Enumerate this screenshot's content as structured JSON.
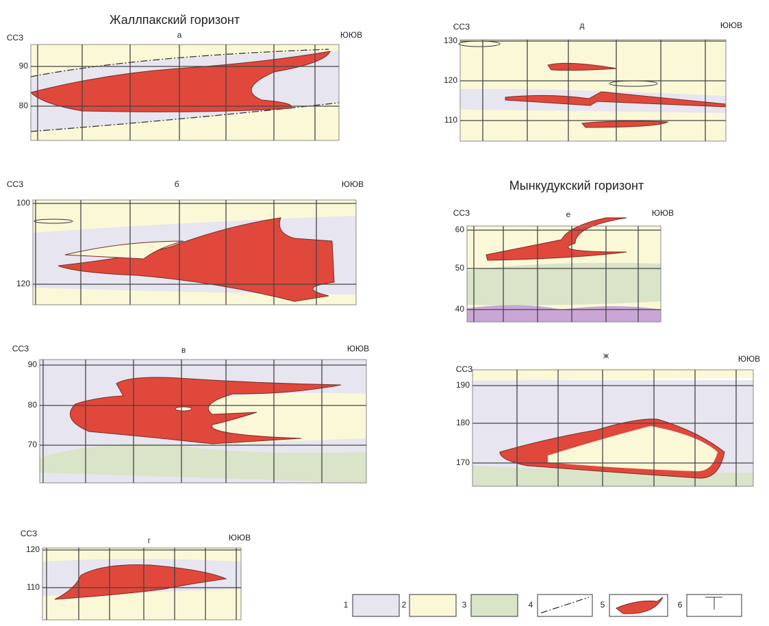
{
  "titles": [
    "Жаллпакский горизонт",
    "Мынкудукский горизонт"
  ],
  "panels": [
    {
      "letter": "а",
      "left": "ССЗ",
      "right": "ЮЮВ",
      "ticks": [
        90,
        80
      ]
    },
    {
      "letter": "д",
      "left": "ССЗ",
      "right": "ЮЮВ",
      "ticks": [
        130,
        120,
        110
      ]
    },
    {
      "letter": "б",
      "left": "ССЗ",
      "right": "ЮЮВ",
      "ticks": [
        100,
        120
      ]
    },
    {
      "letter": "е",
      "left": "ССЗ",
      "right": "ЮЮВ",
      "ticks": [
        60,
        50,
        40
      ]
    },
    {
      "letter": "в",
      "left": "ССЗ",
      "right": "ЮЮВ",
      "ticks": [
        90,
        80,
        70
      ]
    },
    {
      "letter": "ж",
      "left": "ССЗ",
      "right": "ЮЮВ",
      "ticks": [
        190,
        180,
        170
      ]
    },
    {
      "letter": "г",
      "left": "ССЗ",
      "right": "ЮЮВ",
      "ticks": [
        120,
        110
      ]
    }
  ],
  "legend": [
    "1",
    "2",
    "3",
    "4",
    "5",
    "6"
  ]
}
